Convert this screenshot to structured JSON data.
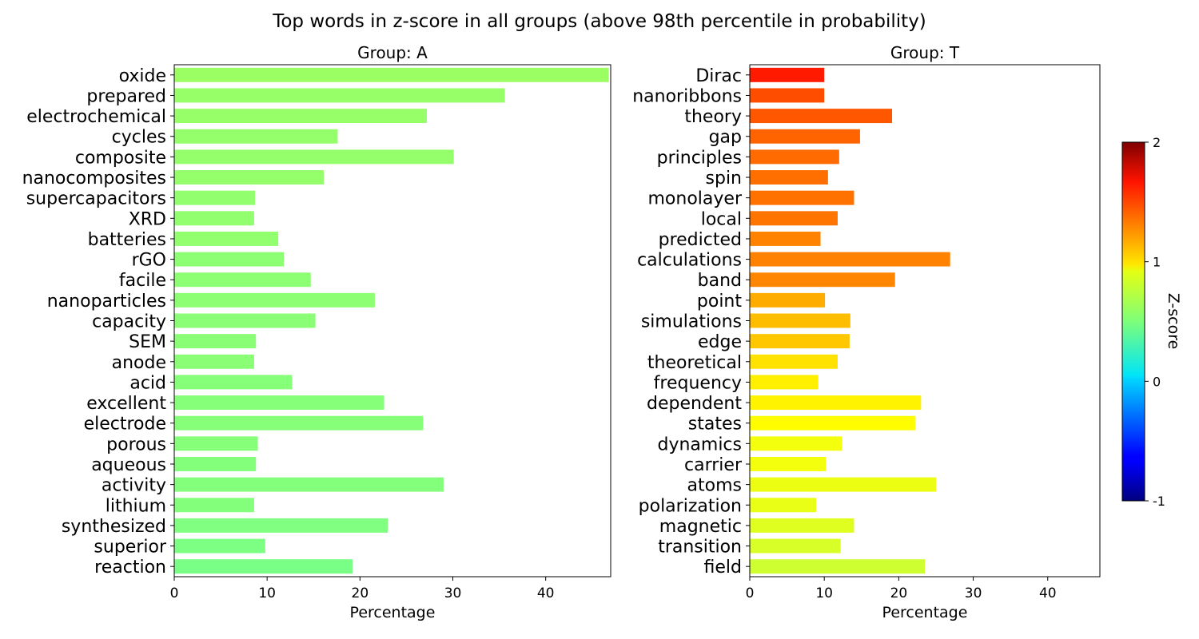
{
  "title": "Top words in z-score in all groups (above 98th percentile in probability)",
  "chart_data": [
    {
      "type": "bar",
      "orientation": "horizontal",
      "title": "Group: A",
      "xlabel": "Percentage",
      "ylabel": "",
      "xlim": [
        0,
        47
      ],
      "xticks": [
        0,
        10,
        20,
        30,
        40
      ],
      "categories": [
        "oxide",
        "prepared",
        "electrochemical",
        "cycles",
        "composite",
        "nanocomposites",
        "supercapacitors",
        "XRD",
        "batteries",
        "rGO",
        "facile",
        "nanoparticles",
        "capacity",
        "SEM",
        "anode",
        "acid",
        "excellent",
        "electrode",
        "porous",
        "aqueous",
        "activity",
        "lithium",
        "synthesized",
        "superior",
        "reaction"
      ],
      "values": [
        46.8,
        35.6,
        27.2,
        17.6,
        30.1,
        16.1,
        8.7,
        8.6,
        11.2,
        11.8,
        14.7,
        21.6,
        15.2,
        8.8,
        8.6,
        12.7,
        22.6,
        26.8,
        9.0,
        8.8,
        29.0,
        8.6,
        23.0,
        9.8,
        19.2
      ],
      "zscores": [
        0.58,
        0.57,
        0.57,
        0.56,
        0.56,
        0.56,
        0.55,
        0.55,
        0.55,
        0.54,
        0.54,
        0.54,
        0.53,
        0.53,
        0.53,
        0.52,
        0.52,
        0.52,
        0.52,
        0.51,
        0.51,
        0.51,
        0.5,
        0.49,
        0.48
      ]
    },
    {
      "type": "bar",
      "orientation": "horizontal",
      "title": "Group: T",
      "xlabel": "Percentage",
      "ylabel": "",
      "xlim": [
        0,
        47
      ],
      "xticks": [
        0,
        10,
        20,
        30,
        40
      ],
      "categories": [
        "Dirac",
        "nanoribbons",
        "theory",
        "gap",
        "principles",
        "spin",
        "monolayer",
        "local",
        "predicted",
        "calculations",
        "band",
        "point",
        "simulations",
        "edge",
        "theoretical",
        "frequency",
        "dependent",
        "states",
        "dynamics",
        "carrier",
        "atoms",
        "polarization",
        "magnetic",
        "transition",
        "field"
      ],
      "values": [
        10.0,
        10.0,
        19.1,
        14.8,
        12.0,
        10.5,
        14.0,
        11.8,
        9.5,
        26.9,
        19.5,
        10.1,
        13.5,
        13.4,
        11.8,
        9.2,
        23.0,
        22.2,
        12.4,
        10.2,
        25.0,
        8.9,
        14.0,
        12.2,
        23.5
      ],
      "zscores": [
        1.55,
        1.4,
        1.37,
        1.33,
        1.31,
        1.3,
        1.29,
        1.28,
        1.24,
        1.24,
        1.23,
        1.12,
        1.07,
        1.04,
        0.96,
        0.92,
        0.91,
        0.88,
        0.84,
        0.84,
        0.82,
        0.81,
        0.78,
        0.76,
        0.73
      ]
    }
  ],
  "colorbar": {
    "label": "Z-score",
    "min": -1,
    "max": 2,
    "ticks": [
      "2",
      "1",
      "0",
      "-1"
    ],
    "colormap": "jet"
  }
}
